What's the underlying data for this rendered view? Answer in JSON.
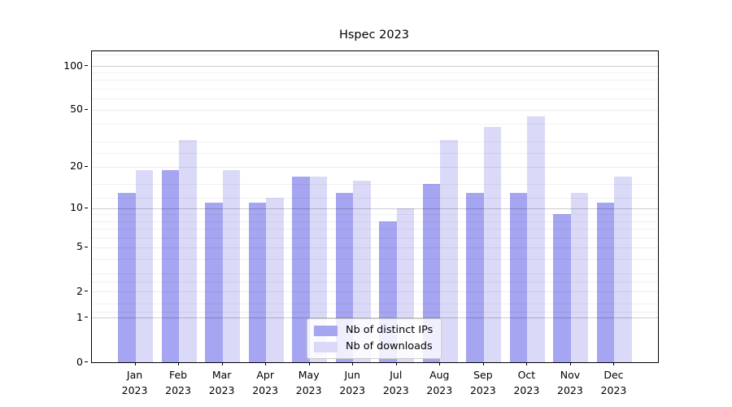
{
  "title": "Hspec 2023",
  "chart_data": {
    "type": "bar",
    "title": "Hspec 2023",
    "yscale": "log(1+v)",
    "ylim": [
      0,
      126
    ],
    "grid": true,
    "legend_position": "bottom-center",
    "months": [
      "Jan",
      "Feb",
      "Mar",
      "Apr",
      "May",
      "Jun",
      "Jul",
      "Aug",
      "Sep",
      "Oct",
      "Nov",
      "Dec"
    ],
    "year": "2023",
    "yticks": [
      100,
      50,
      20,
      10,
      5,
      2,
      1,
      0
    ],
    "decade_gridlines": [
      100,
      10,
      1
    ],
    "minor_gridlines": [
      120,
      90,
      80,
      70,
      60,
      40,
      30,
      25,
      15,
      12,
      9,
      8,
      7,
      6,
      4,
      3,
      2.5,
      1.5,
      1.2
    ],
    "series": [
      {
        "name": "Nb of distinct IPs",
        "color": "#a5a5f1",
        "values": [
          13,
          19,
          11,
          11,
          17,
          13,
          8,
          15,
          13,
          13,
          9,
          11
        ]
      },
      {
        "name": "Nb of downloads",
        "color": "#dadaf8",
        "values": [
          19,
          31,
          19,
          12,
          17,
          16,
          10,
          31,
          38,
          45,
          13,
          17
        ]
      }
    ]
  },
  "legend": {
    "items": [
      "Nb of distinct IPs",
      "Nb of downloads"
    ]
  }
}
